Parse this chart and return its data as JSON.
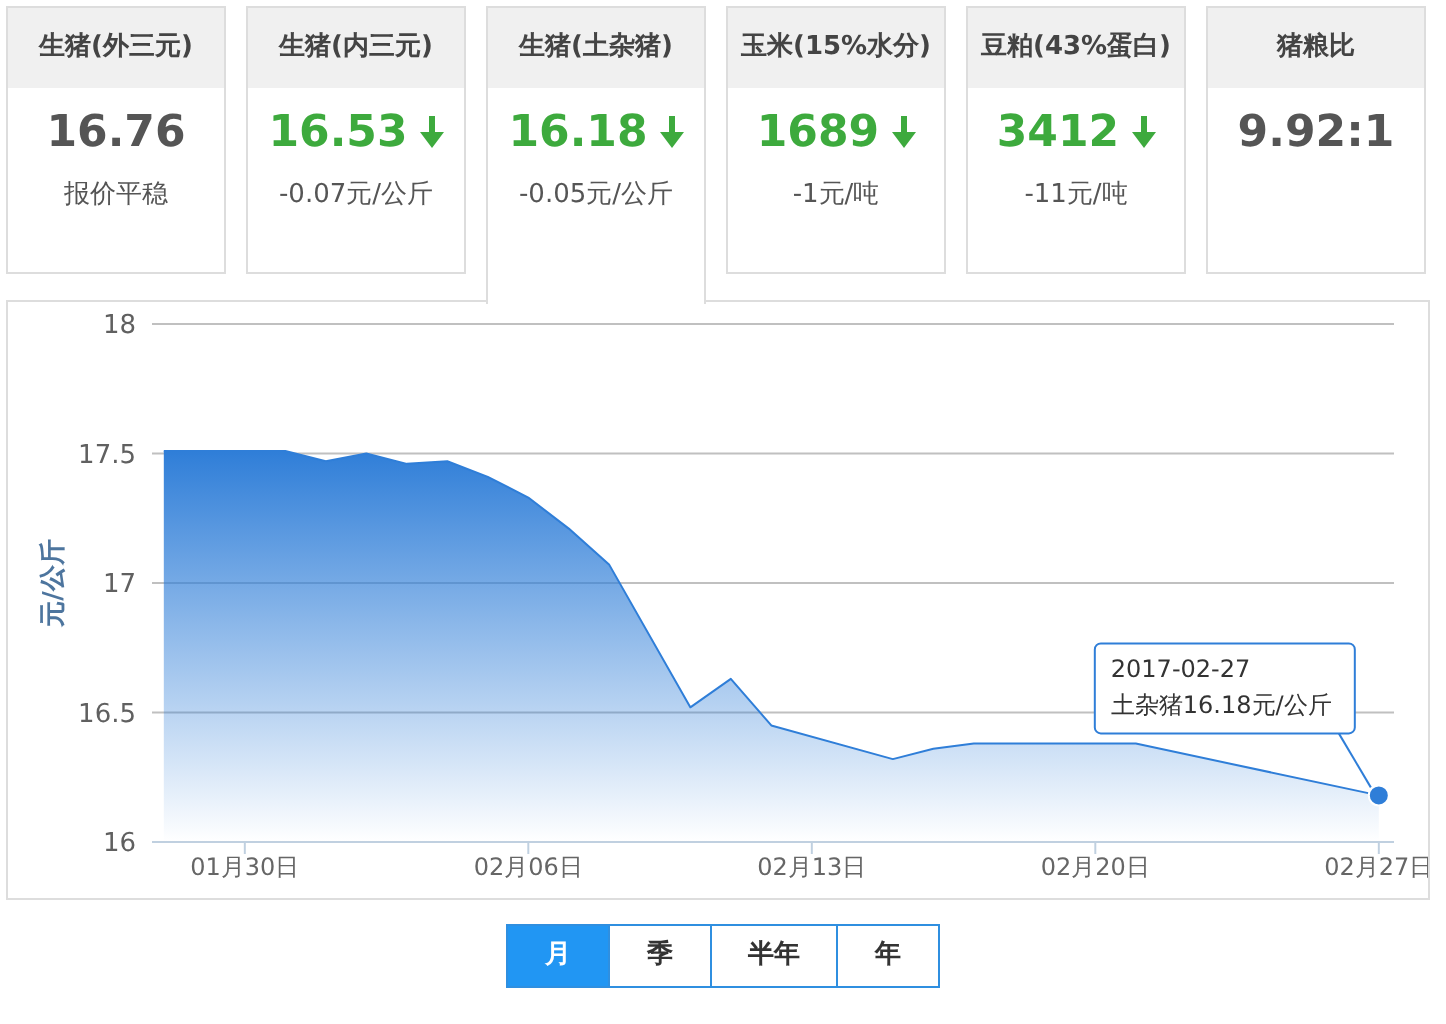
{
  "chart_data": [
    {
      "type": "other",
      "categories": [
        "生猪(外三元)",
        "生猪(内三元)",
        "生猪(土杂猪)",
        "玉米(15%水分)",
        "豆粕(43%蛋白)",
        "猪粮比"
      ],
      "value_labels": [
        "16.76",
        "16.53",
        "16.18",
        "1689",
        "3412",
        "9.92:1"
      ],
      "annotations": [
        "报价平稳",
        "-0.07元/公斤",
        "-0.05元/公斤",
        "-1元/吨",
        "-11元/吨"
      ]
    },
    {
      "type": "area",
      "ylabel": "元/公斤",
      "x": [
        "2017-01-28",
        "2017-01-29",
        "2017-01-30",
        "2017-01-31",
        "2017-02-01",
        "2017-02-02",
        "2017-02-03",
        "2017-02-04",
        "2017-02-05",
        "2017-02-06",
        "2017-02-07",
        "2017-02-08",
        "2017-02-10",
        "2017-02-11",
        "2017-02-12",
        "2017-02-15",
        "2017-02-16",
        "2017-02-17",
        "2017-02-21",
        "2017-02-27"
      ],
      "series": [
        {
          "color": "#2f7ed8",
          "values": [
            17.51,
            17.51,
            17.51,
            17.51,
            17.47,
            17.5,
            17.46,
            17.47,
            17.41,
            17.33,
            17.21,
            17.07,
            16.52,
            16.63,
            16.45,
            16.32,
            16.36,
            16.38,
            16.38,
            16.18
          ]
        }
      ],
      "xlim": [
        "2017-01-27T17:00",
        "2017-02-27T09:00"
      ],
      "xticks": [
        {
          "value": "2017-01-30",
          "label": "01月30日"
        },
        {
          "value": "2017-02-06",
          "label": "02月06日"
        },
        {
          "value": "2017-02-13",
          "label": "02月13日"
        },
        {
          "value": "2017-02-20",
          "label": "02月20日"
        },
        {
          "value": "2017-02-27",
          "label": "02月27日"
        }
      ],
      "ylim": [
        16,
        18
      ],
      "yticks": [
        16,
        16.5,
        17,
        17.5,
        18
      ],
      "grid": "y",
      "legend": false,
      "marker": "none",
      "annotations": [
        "月",
        "季",
        "半年",
        "年",
        {
          "text": "2017-02-27\n土杂猪16.18元/公斤",
          "x": "2017-02-27",
          "y": 16.18
        }
      ]
    }
  ]
}
